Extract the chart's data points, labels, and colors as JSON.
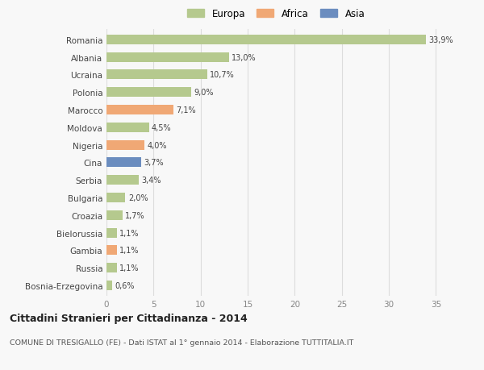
{
  "countries": [
    "Romania",
    "Albania",
    "Ucraina",
    "Polonia",
    "Marocco",
    "Moldova",
    "Nigeria",
    "Cina",
    "Serbia",
    "Bulgaria",
    "Croazia",
    "Bielorussia",
    "Gambia",
    "Russia",
    "Bosnia-Erzegovina"
  ],
  "values": [
    33.9,
    13.0,
    10.7,
    9.0,
    7.1,
    4.5,
    4.0,
    3.7,
    3.4,
    2.0,
    1.7,
    1.1,
    1.1,
    1.1,
    0.6
  ],
  "labels": [
    "33,9%",
    "13,0%",
    "10,7%",
    "9,0%",
    "7,1%",
    "4,5%",
    "4,0%",
    "3,7%",
    "3,4%",
    "2,0%",
    "1,7%",
    "1,1%",
    "1,1%",
    "1,1%",
    "0,6%"
  ],
  "continents": [
    "Europa",
    "Europa",
    "Europa",
    "Europa",
    "Africa",
    "Europa",
    "Africa",
    "Asia",
    "Europa",
    "Europa",
    "Europa",
    "Europa",
    "Africa",
    "Europa",
    "Europa"
  ],
  "colors": {
    "Europa": "#b5c98e",
    "Africa": "#f0a875",
    "Asia": "#6b8dbf"
  },
  "title": "Cittadini Stranieri per Cittadinanza - 2014",
  "subtitle": "COMUNE DI TRESIGALLO (FE) - Dati ISTAT al 1° gennaio 2014 - Elaborazione TUTTITALIA.IT",
  "xlim": [
    0,
    36
  ],
  "xticks": [
    0,
    5,
    10,
    15,
    20,
    25,
    30,
    35
  ],
  "background_color": "#f8f8f8",
  "grid_color": "#dddddd",
  "bar_height": 0.55
}
